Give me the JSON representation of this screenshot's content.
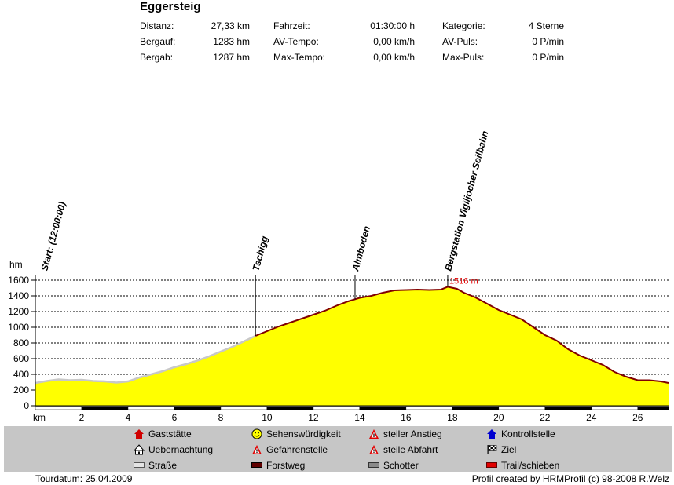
{
  "title": "Eggersteig",
  "stats": [
    {
      "label": "Distanz:",
      "value": "27,33 km"
    },
    {
      "label": "Bergauf:",
      "value": "1283 hm"
    },
    {
      "label": "Bergab:",
      "value": "1287 hm"
    },
    {
      "label": "Fahrzeit:",
      "value": "01:30:00 h"
    },
    {
      "label": "AV-Tempo:",
      "value": "0,00 km/h"
    },
    {
      "label": "Max-Tempo:",
      "value": "0,00 km/h"
    },
    {
      "label": "Kategorie:",
      "value": "4 Sterne"
    },
    {
      "label": "AV-Puls:",
      "value": "0 P/min"
    },
    {
      "label": "Max-Puls:",
      "value": "0 P/min"
    }
  ],
  "legend": [
    {
      "icon": "house-red-icon",
      "label": "Gaststätte"
    },
    {
      "icon": "smiley-icon",
      "label": "Sehenswürdigkeit"
    },
    {
      "icon": "warning-triangle-icon",
      "label": "steiler Anstieg"
    },
    {
      "icon": "house-blue-icon",
      "label": "Kontrollstelle"
    },
    {
      "icon": "hut-icon",
      "label": "Uebernachtung"
    },
    {
      "icon": "warning-triangle-icon",
      "label": "Gefahrenstelle"
    },
    {
      "icon": "warning-triangle-icon",
      "label": "steile Abfahrt"
    },
    {
      "icon": "finish-flag-icon",
      "label": "Ziel"
    },
    {
      "icon": "swatch-lightgray-icon",
      "label": "Straße"
    },
    {
      "icon": "swatch-darkred-icon",
      "label": "Forstweg"
    },
    {
      "icon": "swatch-gray-icon",
      "label": "Schotter"
    },
    {
      "icon": "swatch-red-icon",
      "label": "Trail/schieben"
    }
  ],
  "footer": {
    "tour_date": "Tourdatum: 25.04.2009",
    "credit": "Profil created by HRMProfil (c) 98-2008 R.Welz"
  },
  "colors": {
    "fill": "#ffff00",
    "road": "#c8c8c8",
    "forest": "#800000",
    "gridline": "#000000",
    "max_label": "#e00000",
    "legend_bg": "#c6c6c6"
  },
  "chart_data": {
    "type": "area",
    "xlabel": "km",
    "ylabel": "hm",
    "xlim": [
      0,
      27.33
    ],
    "ylim": [
      0,
      1600
    ],
    "x_ticks": [
      2,
      4,
      6,
      8,
      10,
      12,
      14,
      16,
      18,
      20,
      22,
      24,
      26
    ],
    "y_ticks": [
      0,
      200,
      400,
      600,
      800,
      1000,
      1200,
      1400,
      1600
    ],
    "grid": true,
    "x": [
      0,
      0.5,
      1,
      1.5,
      2,
      2.5,
      3,
      3.5,
      4,
      4.5,
      5,
      5.5,
      6,
      6.5,
      7,
      7.5,
      8,
      8.5,
      9,
      9.5,
      10,
      10.5,
      11,
      11.5,
      12,
      12.5,
      13,
      13.5,
      14,
      14.5,
      15,
      15.5,
      16,
      16.5,
      17,
      17.5,
      17.8,
      18.2,
      18.5,
      19,
      19.5,
      20,
      20.5,
      21,
      21.5,
      22,
      22.5,
      23,
      23.5,
      24,
      24.5,
      25,
      25.5,
      26,
      26.5,
      27,
      27.33
    ],
    "y": [
      290,
      315,
      335,
      325,
      330,
      315,
      310,
      295,
      310,
      360,
      400,
      440,
      490,
      530,
      575,
      630,
      690,
      750,
      820,
      890,
      950,
      1010,
      1060,
      1110,
      1160,
      1210,
      1275,
      1330,
      1375,
      1400,
      1440,
      1470,
      1475,
      1480,
      1475,
      1480,
      1516,
      1490,
      1440,
      1380,
      1300,
      1220,
      1160,
      1100,
      1000,
      900,
      830,
      720,
      640,
      580,
      520,
      430,
      370,
      325,
      325,
      310,
      290
    ],
    "surface_segments": [
      {
        "surface": "Straße",
        "from_km": 0,
        "to_km": 9.5
      },
      {
        "surface": "Forstweg",
        "from_km": 9.5,
        "to_km": 27.33
      }
    ],
    "waypoints": [
      {
        "label": "Start: (12:00:00)",
        "km": 0
      },
      {
        "label": "Tschigg",
        "km": 9.5
      },
      {
        "label": "Almboden",
        "km": 13.8
      },
      {
        "label": "Bergstation Vigiljocher Seilbahn",
        "km": 17.8
      }
    ],
    "max_annotation": {
      "label": "1516 m",
      "km": 17.8,
      "value": 1516
    }
  }
}
